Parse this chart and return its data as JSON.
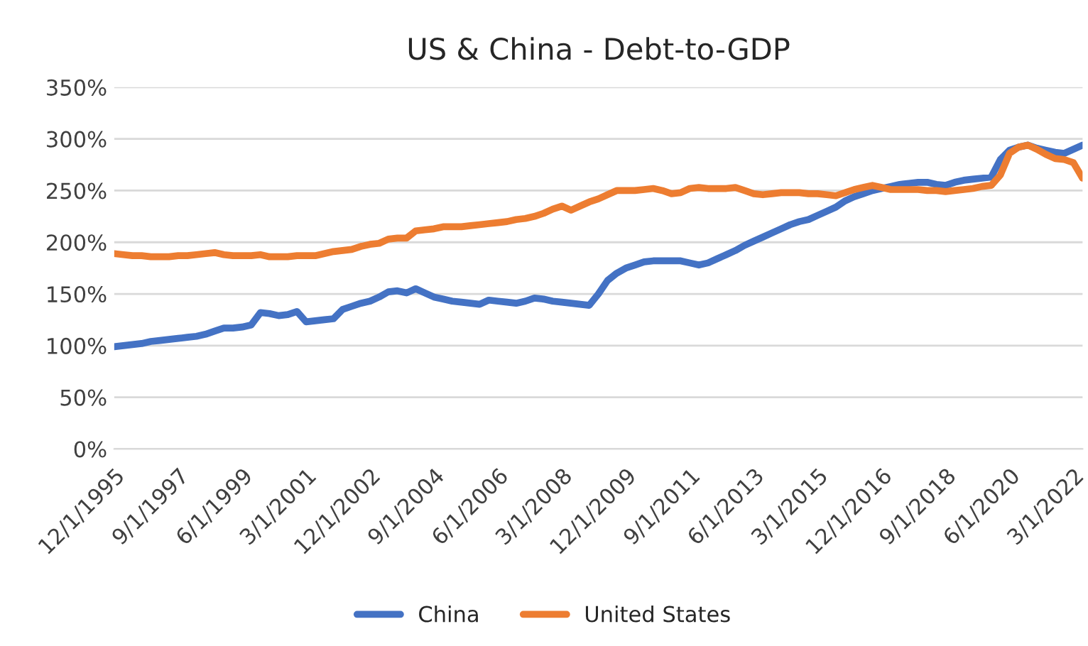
{
  "chart_data": {
    "type": "line",
    "title": "US & China - Debt-to-GDP",
    "categories": [
      "12/1/1995",
      null,
      null,
      null,
      null,
      null,
      null,
      "9/1/1997",
      null,
      null,
      null,
      null,
      null,
      null,
      "6/1/1999",
      null,
      null,
      null,
      null,
      null,
      null,
      "3/1/2001",
      null,
      null,
      null,
      null,
      null,
      null,
      "12/1/2002",
      null,
      null,
      null,
      null,
      null,
      null,
      "9/1/2004",
      null,
      null,
      null,
      null,
      null,
      null,
      "6/1/2006",
      null,
      null,
      null,
      null,
      null,
      null,
      "3/1/2008",
      null,
      null,
      null,
      null,
      null,
      null,
      "12/1/2009",
      null,
      null,
      null,
      null,
      null,
      null,
      "9/1/2011",
      null,
      null,
      null,
      null,
      null,
      null,
      "6/1/2013",
      null,
      null,
      null,
      null,
      null,
      null,
      "3/1/2015",
      null,
      null,
      null,
      null,
      null,
      null,
      "12/1/2016",
      null,
      null,
      null,
      null,
      null,
      null,
      "9/1/2018",
      null,
      null,
      null,
      null,
      null,
      null,
      "6/1/2020",
      null,
      null,
      null,
      null,
      null,
      null,
      "3/1/2022",
      null
    ],
    "series": [
      {
        "name": "China",
        "color": "#4472c4",
        "values": [
          99,
          100,
          101,
          102,
          104,
          105,
          106,
          107,
          108,
          109,
          111,
          114,
          117,
          117,
          118,
          120,
          132,
          131,
          129,
          130,
          133,
          123,
          124,
          125,
          126,
          135,
          138,
          141,
          143,
          147,
          152,
          153,
          151,
          155,
          151,
          147,
          145,
          143,
          142,
          141,
          140,
          144,
          143,
          142,
          141,
          143,
          146,
          145,
          143,
          142,
          141,
          140,
          139,
          150,
          163,
          170,
          175,
          178,
          181,
          182,
          182,
          182,
          182,
          180,
          178,
          180,
          184,
          188,
          192,
          197,
          201,
          205,
          209,
          213,
          217,
          220,
          222,
          226,
          230,
          234,
          240,
          244,
          247,
          250,
          252,
          254,
          256,
          257,
          258,
          258,
          256,
          255,
          258,
          260,
          261,
          262,
          263,
          280,
          289,
          292,
          294,
          291,
          289,
          287,
          286,
          290,
          294
        ]
      },
      {
        "name": "United States",
        "color": "#ed7d31",
        "values": [
          189,
          188,
          187,
          187,
          186,
          186,
          186,
          187,
          187,
          188,
          189,
          190,
          188,
          187,
          187,
          187,
          188,
          186,
          186,
          186,
          187,
          187,
          187,
          189,
          191,
          192,
          193,
          196,
          198,
          199,
          203,
          204,
          204,
          211,
          212,
          213,
          215,
          215,
          215,
          216,
          217,
          218,
          219,
          220,
          222,
          223,
          225,
          228,
          232,
          235,
          231,
          235,
          239,
          242,
          246,
          250,
          250,
          250,
          251,
          252,
          250,
          247,
          248,
          252,
          253,
          252,
          252,
          252,
          253,
          250,
          247,
          246,
          247,
          248,
          248,
          248,
          247,
          247,
          246,
          245,
          248,
          251,
          253,
          255,
          253,
          251,
          251,
          251,
          251,
          250,
          250,
          249,
          250,
          251,
          252,
          254,
          255,
          265,
          286,
          292,
          294,
          290,
          285,
          281,
          280,
          277,
          262
        ]
      }
    ],
    "ylim": [
      0,
      350
    ],
    "yticks": [
      {
        "value": 0,
        "label": "0%"
      },
      {
        "value": 50,
        "label": "50%"
      },
      {
        "value": 100,
        "label": "100%"
      },
      {
        "value": 150,
        "label": "150%"
      },
      {
        "value": 200,
        "label": "200%"
      },
      {
        "value": 250,
        "label": "250%"
      },
      {
        "value": 300,
        "label": "300%"
      },
      {
        "value": 350,
        "label": "350%"
      }
    ],
    "grid": "y",
    "legend": "bottom",
    "marker": "none",
    "line_style": "solid"
  }
}
